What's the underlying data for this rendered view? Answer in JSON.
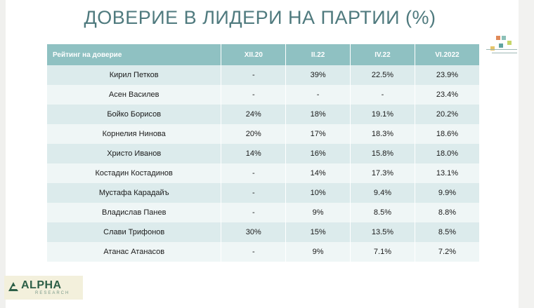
{
  "title": "ДОВЕРИЕ В ЛИДЕРИ НА ПАРТИИ (%)",
  "table": {
    "headers": [
      "Рейтинг на доверие",
      "XII.20",
      "II.22",
      "IV.22",
      "VI.2022"
    ],
    "rows": [
      [
        "Кирил Петков",
        "-",
        "39%",
        "22.5%",
        "23.9%"
      ],
      [
        "Асен Василев",
        "-",
        "-",
        "-",
        "23.4%"
      ],
      [
        "Бойко Борисов",
        "24%",
        "18%",
        "19.1%",
        "20.2%"
      ],
      [
        "Корнелия Нинова",
        "20%",
        "17%",
        "18.3%",
        "18.6%"
      ],
      [
        "Христо Иванов",
        "14%",
        "16%",
        "15.8%",
        "18.0%"
      ],
      [
        "Костадин Костадинов",
        "-",
        "14%",
        "17.3%",
        "13.1%"
      ],
      [
        "Мустафа Карадайъ",
        "-",
        "10%",
        "9.4%",
        "9.9%"
      ],
      [
        "Владислав Панев",
        "-",
        "9%",
        "8.5%",
        "8.8%"
      ],
      [
        "Слави Трифонов",
        "30%",
        "15%",
        "13.5%",
        "8.5%"
      ],
      [
        "Атанас Атанасов",
        "-",
        "9%",
        "7.1%",
        "7.2%"
      ]
    ]
  },
  "logo": {
    "name": "ALPHA",
    "sub": "RESEARCH"
  },
  "colors": {
    "title": "#4f7a7e",
    "header_bg": "#8fc1c2",
    "row_odd": "#dcebec",
    "row_even": "#eff6f6",
    "logo_green": "#2d5f47"
  }
}
